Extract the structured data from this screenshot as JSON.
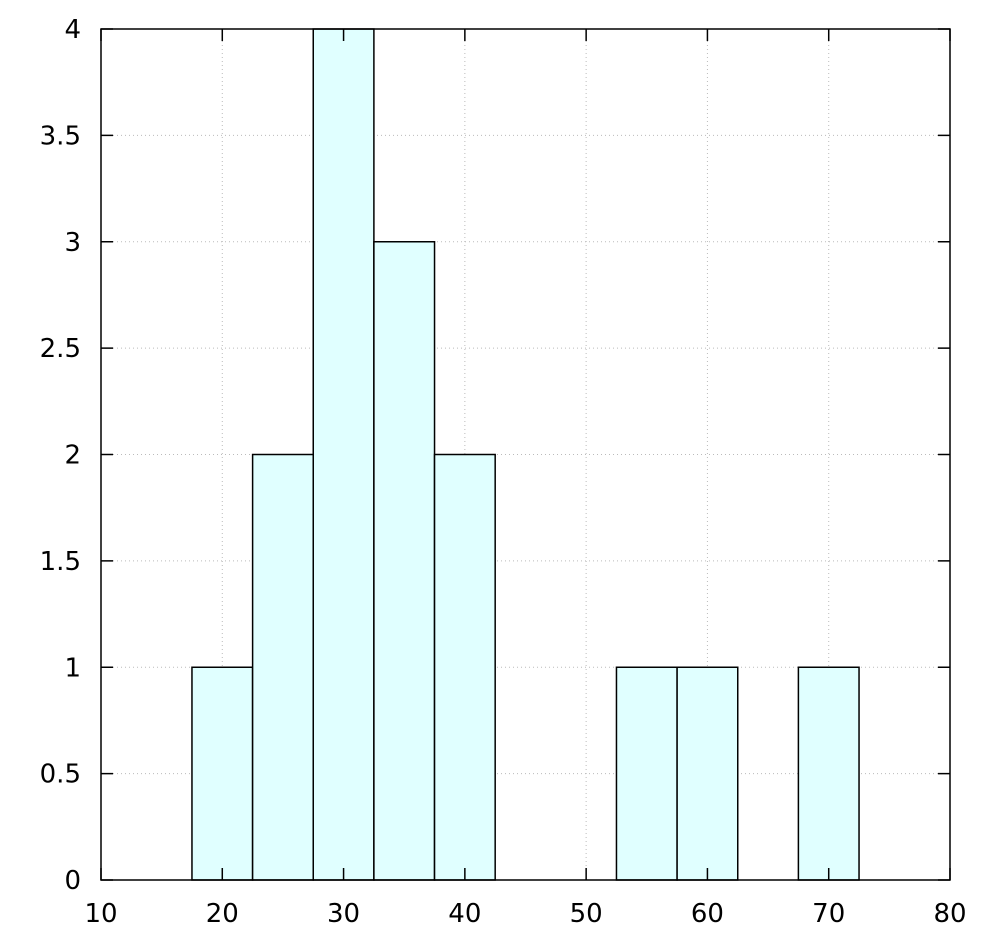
{
  "chart_data": {
    "type": "histogram",
    "bins": [
      17.5,
      22.5,
      27.5,
      32.5,
      37.5,
      42.5,
      47.5,
      52.5,
      57.5,
      62.5,
      67.5,
      72.5
    ],
    "values": [
      1,
      2,
      4,
      3,
      2,
      0,
      0,
      1,
      1,
      0,
      1
    ],
    "color": "#e0ffff",
    "xlim": [
      10,
      80
    ],
    "xticks": [
      10,
      20,
      30,
      40,
      50,
      60,
      70,
      80
    ],
    "ylim": [
      0,
      4
    ],
    "yticks": [
      0,
      0.5,
      1,
      1.5,
      2,
      2.5,
      3,
      3.5,
      4
    ],
    "grid": true
  }
}
